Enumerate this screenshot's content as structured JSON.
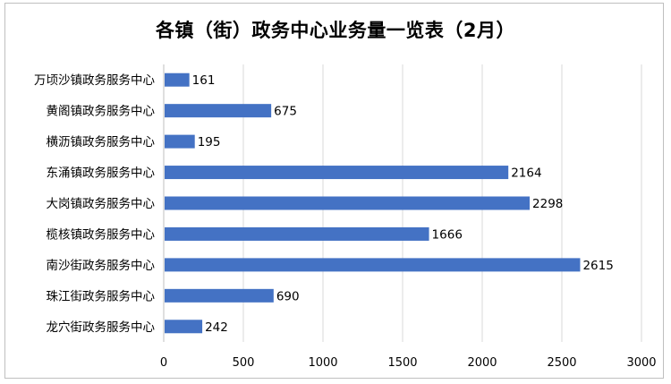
{
  "chart_data": {
    "type": "bar",
    "orientation": "horizontal",
    "title": "各镇（街）政务中心业务量一览表（2月）",
    "categories": [
      "万顷沙镇政务服务中心",
      "黄阁镇政务服务中心",
      "横沥镇政务服务中心",
      "东涌镇政务服务中心",
      "大岗镇政务服务中心",
      "榄核镇政务服务中心",
      "南沙街政务服务中心",
      "珠江街政务服务中心",
      "龙穴街政务服务中心"
    ],
    "values": [
      161,
      675,
      195,
      2164,
      2298,
      1666,
      2615,
      690,
      242
    ],
    "xlim": [
      0,
      3000
    ],
    "xticks": [
      0,
      500,
      1000,
      1500,
      2000,
      2500,
      3000
    ],
    "grid": "vertical",
    "legend": "none",
    "data_labels": true,
    "colors": {
      "bar": "#4472C4",
      "grid": "#d9d9d9",
      "text": "#000000"
    }
  }
}
